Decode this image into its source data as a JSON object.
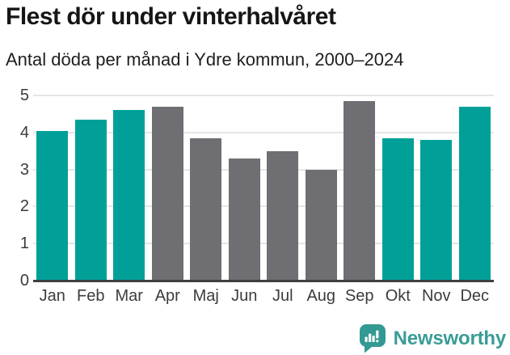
{
  "header": {
    "title": "Flest dör under vinterhalvåret",
    "subtitle": "Antal döda per månad i Ydre kommun, 2000–2024"
  },
  "chart_data": {
    "type": "bar",
    "title": "Flest dör under vinterhalvåret",
    "subtitle": "Antal döda per månad i Ydre kommun, 2000–2024",
    "categories": [
      "Jan",
      "Feb",
      "Mar",
      "Apr",
      "Maj",
      "Jun",
      "Jul",
      "Aug",
      "Sep",
      "Okt",
      "Nov",
      "Dec"
    ],
    "values": [
      4.05,
      4.35,
      4.6,
      4.7,
      3.85,
      3.3,
      3.5,
      3.0,
      4.85,
      3.85,
      3.8,
      4.7
    ],
    "bar_colors": [
      "teal",
      "teal",
      "teal",
      "gray",
      "gray",
      "gray",
      "gray",
      "gray",
      "gray",
      "teal",
      "teal",
      "teal"
    ],
    "xlabel": "",
    "ylabel": "",
    "ylim": [
      0,
      5
    ],
    "yticks": [
      0,
      1,
      2,
      3,
      4,
      5
    ],
    "grid": true,
    "legend": false
  },
  "colors": {
    "bar_teal": "#00a099",
    "bar_gray": "#6e6e73",
    "gridline": "#e5e5e5",
    "axis_line": "#3f3f44",
    "axis_text": "#3c3c3c",
    "title_text": "#161616",
    "logo_teal": "#3a9c96"
  },
  "footer": {
    "brand": "Newsworthy",
    "logo_icon": "bar-chart-speech-bubble-icon"
  }
}
